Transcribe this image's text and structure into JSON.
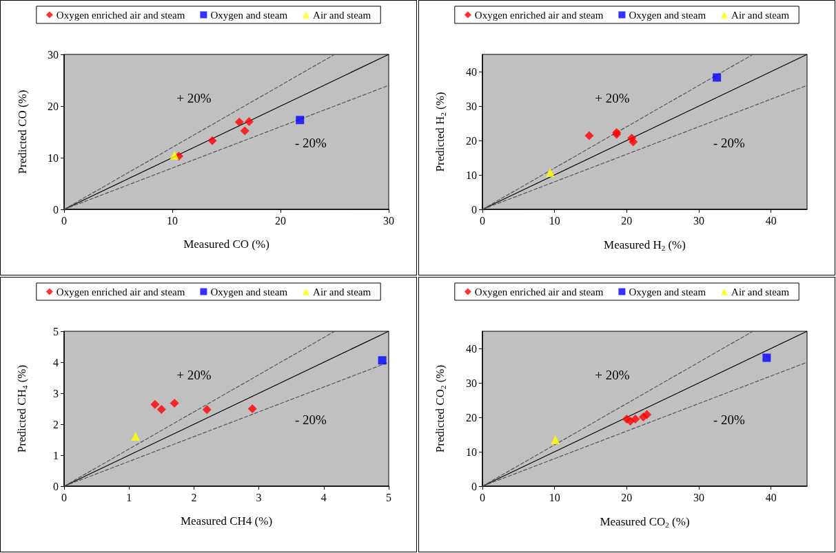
{
  "chart_data": [
    {
      "type": "scatter",
      "xlabel": "Measured CO (%)",
      "ylabel": "Predicted CO (%)",
      "xlim": [
        0,
        30
      ],
      "xticks": [
        0,
        10,
        20,
        30
      ],
      "ylim": [
        0,
        30
      ],
      "yticks": [
        0,
        10,
        20,
        30
      ],
      "grid": false,
      "legend": "top",
      "series": [
        {
          "name": "Oxygen enriched air and steam",
          "color": "#ff0000",
          "marker": "diamond",
          "x": [
            10.6,
            13.7,
            16.2,
            17.1,
            16.7
          ],
          "values": [
            10.3,
            13.3,
            16.9,
            17.0,
            15.2
          ]
        },
        {
          "name": "Oxygen and steam",
          "color": "#0000ff",
          "marker": "square",
          "x": [
            21.8
          ],
          "values": [
            17.3
          ]
        },
        {
          "name": "Air and steam",
          "color": "#ffff00",
          "marker": "triangle",
          "x": [
            10.2
          ],
          "values": [
            10.5
          ]
        },
        {
          "type": "line",
          "color": "#000000",
          "line_style": "solid",
          "x": [
            0,
            30
          ],
          "values": [
            0,
            30
          ]
        },
        {
          "type": "line",
          "color": "#555555",
          "line_style": "dashed",
          "x": [
            0,
            25
          ],
          "values": [
            0,
            30
          ]
        },
        {
          "type": "line",
          "color": "#555555",
          "line_style": "dashed",
          "x": [
            0,
            30
          ],
          "values": [
            0,
            24
          ]
        }
      ],
      "annotations": [
        "+ 20%",
        "- 20%"
      ]
    },
    {
      "type": "scatter",
      "xlabel": "Measured H$_{2}$ (%)",
      "ylabel": "Predicted H$_{2}$ (%)",
      "xlim": [
        0,
        45
      ],
      "xticks": [
        0,
        10,
        20,
        30,
        40
      ],
      "ylim": [
        0,
        45
      ],
      "yticks": [
        0,
        10,
        20,
        30,
        40
      ],
      "grid": false,
      "legend": "top",
      "series": [
        {
          "name": "Oxygen enriched air and steam",
          "color": "#ff0000",
          "marker": "diamond",
          "x": [
            14.8,
            18.6,
            18.6,
            20.7,
            20.9
          ],
          "values": [
            21.4,
            22.3,
            21.8,
            20.7,
            19.6
          ]
        },
        {
          "name": "Oxygen and steam",
          "color": "#0000ff",
          "marker": "square",
          "x": [
            32.5
          ],
          "values": [
            38.3
          ]
        },
        {
          "name": "Air and steam",
          "color": "#ffff00",
          "marker": "triangle",
          "x": [
            9.4
          ],
          "values": [
            10.7
          ]
        },
        {
          "type": "line",
          "color": "#000000",
          "line_style": "solid",
          "x": [
            0,
            45
          ],
          "values": [
            0,
            45
          ]
        },
        {
          "type": "line",
          "color": "#555555",
          "line_style": "dashed",
          "x": [
            0,
            37.5
          ],
          "values": [
            0,
            45
          ]
        },
        {
          "type": "line",
          "color": "#555555",
          "line_style": "dashed",
          "x": [
            0,
            45
          ],
          "values": [
            0,
            36
          ]
        }
      ],
      "annotations": [
        "+ 20%",
        "- 20%"
      ]
    },
    {
      "type": "scatter",
      "xlabel": "Measured CH4 (%)",
      "ylabel": "Predicted CH$_{4}$ (%)",
      "xlim": [
        0,
        5
      ],
      "xticks": [
        0,
        1,
        2,
        3,
        4,
        5
      ],
      "ylim": [
        0,
        5
      ],
      "yticks": [
        0,
        1,
        2,
        3,
        4,
        5
      ],
      "grid": false,
      "legend": "top",
      "series": [
        {
          "name": "Oxygen enriched air and steam",
          "color": "#ff0000",
          "marker": "diamond",
          "x": [
            1.4,
            1.5,
            1.7,
            2.2,
            2.9
          ],
          "values": [
            2.64,
            2.48,
            2.68,
            2.47,
            2.5
          ]
        },
        {
          "name": "Oxygen and steam",
          "color": "#0000ff",
          "marker": "square",
          "x": [
            4.9
          ],
          "values": [
            4.06
          ]
        },
        {
          "name": "Air and steam",
          "color": "#ffff00",
          "marker": "triangle",
          "x": [
            1.1
          ],
          "values": [
            1.61
          ]
        },
        {
          "type": "line",
          "color": "#000000",
          "line_style": "solid",
          "x": [
            0,
            5
          ],
          "values": [
            0,
            5
          ]
        },
        {
          "type": "line",
          "color": "#555555",
          "line_style": "dashed",
          "x": [
            0,
            4.17
          ],
          "values": [
            0,
            5
          ]
        },
        {
          "type": "line",
          "color": "#555555",
          "line_style": "dashed",
          "x": [
            0,
            5
          ],
          "values": [
            0,
            4
          ]
        }
      ],
      "annotations": [
        "+ 20%",
        "- 20%"
      ]
    },
    {
      "type": "scatter",
      "xlabel": "Measured CO$_{2}$ (%)",
      "ylabel": "Predicted CO$_{2}$ (%)",
      "xlim": [
        0,
        45
      ],
      "xticks": [
        0,
        10,
        20,
        30,
        40
      ],
      "ylim": [
        0,
        45
      ],
      "yticks": [
        0,
        10,
        20,
        30,
        40
      ],
      "grid": false,
      "legend": "top",
      "series": [
        {
          "name": "Oxygen enriched air and steam",
          "color": "#ff0000",
          "marker": "diamond",
          "x": [
            20.0,
            20.5,
            21.2,
            22.3,
            22.8
          ],
          "values": [
            19.5,
            18.9,
            19.5,
            20.1,
            20.8
          ]
        },
        {
          "name": "Oxygen and steam",
          "color": "#0000ff",
          "marker": "square",
          "x": [
            39.4
          ],
          "values": [
            37.3
          ]
        },
        {
          "name": "Air and steam",
          "color": "#ffff00",
          "marker": "triangle",
          "x": [
            10.1
          ],
          "values": [
            13.5
          ]
        },
        {
          "type": "line",
          "color": "#000000",
          "line_style": "solid",
          "x": [
            0,
            45
          ],
          "values": [
            0,
            45
          ]
        },
        {
          "type": "line",
          "color": "#555555",
          "line_style": "dashed",
          "x": [
            0,
            37.5
          ],
          "values": [
            0,
            45
          ]
        },
        {
          "type": "line",
          "color": "#555555",
          "line_style": "dashed",
          "x": [
            0,
            45
          ],
          "values": [
            0,
            36
          ]
        }
      ],
      "annotations": [
        "+ 20%",
        "- 20%"
      ]
    }
  ]
}
